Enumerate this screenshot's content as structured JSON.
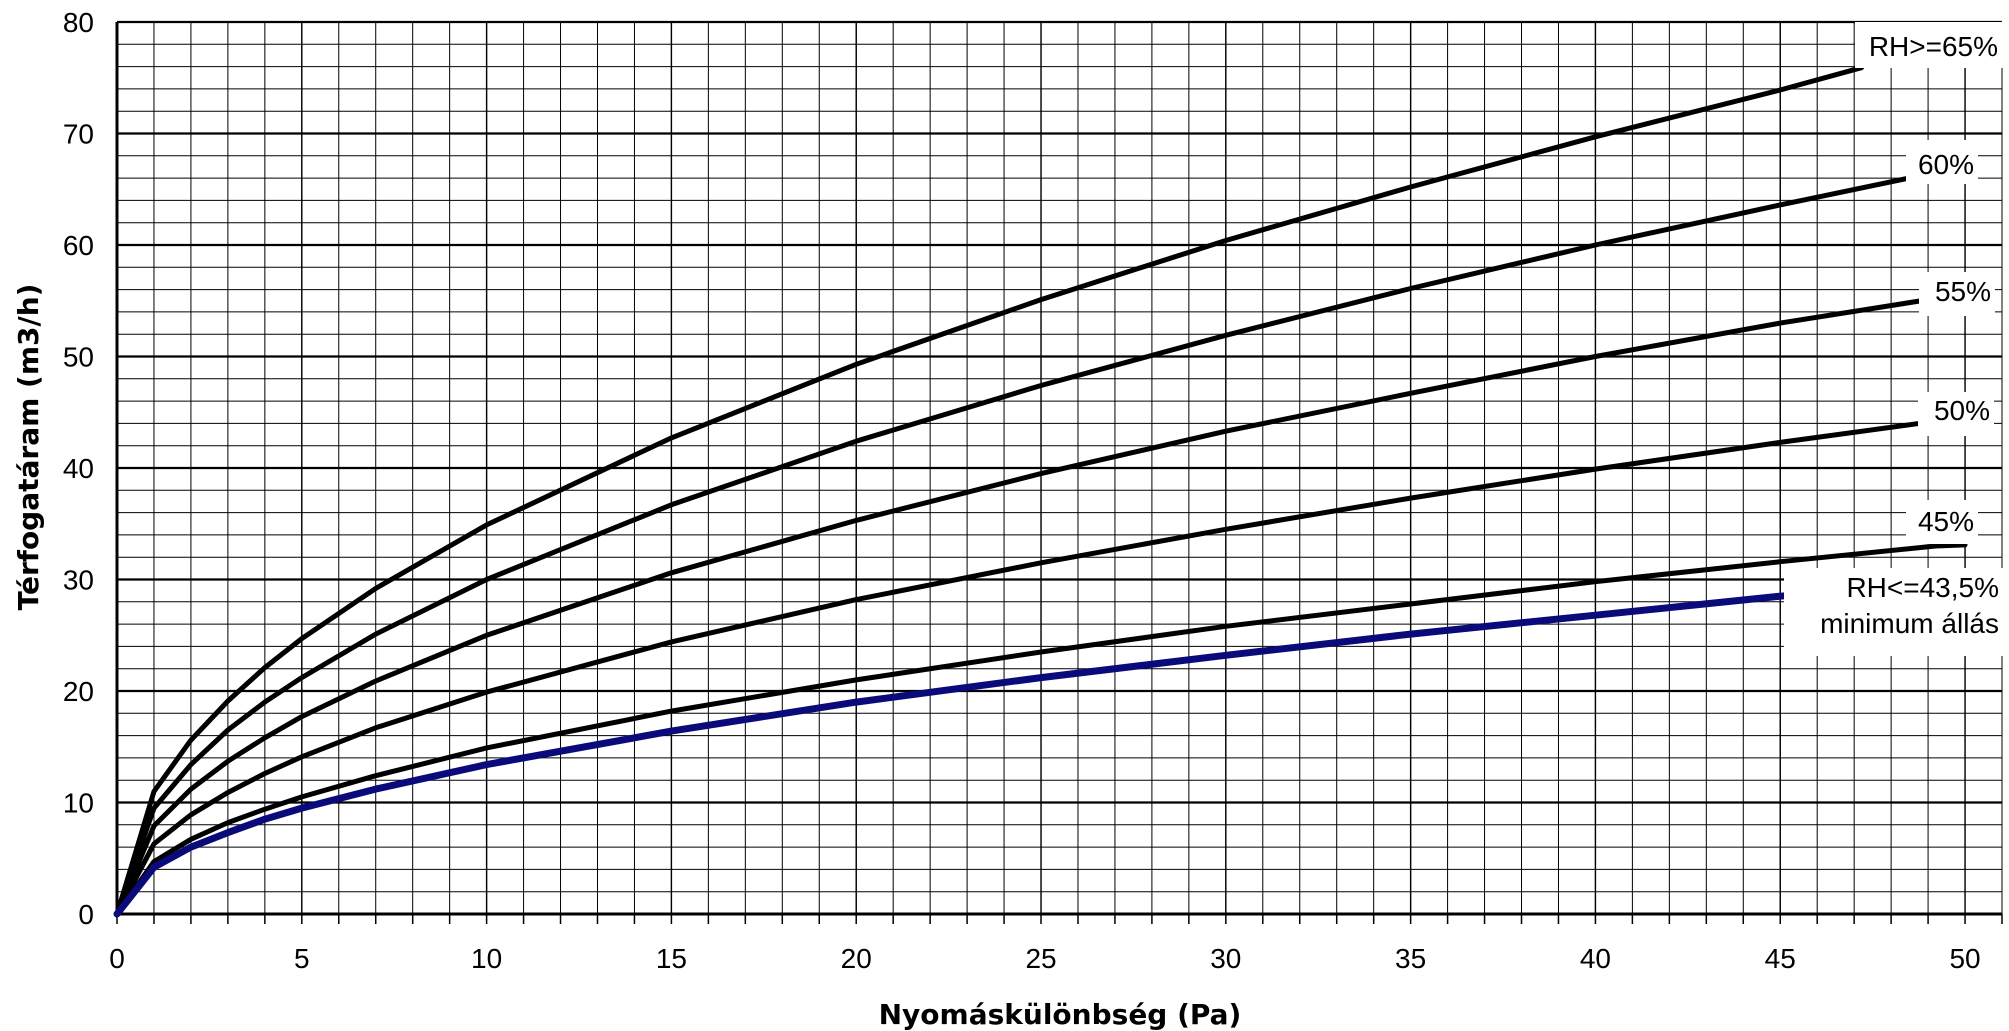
{
  "chart_data": {
    "type": "line",
    "title": "",
    "xlabel": "Nyomáskülönbség (Pa)",
    "ylabel": "Térfogatáram (m3/h)",
    "xlim": [
      0,
      51
    ],
    "ylim": [
      0,
      80
    ],
    "x_major_ticks": [
      0,
      5,
      10,
      15,
      20,
      25,
      30,
      35,
      40,
      45,
      50
    ],
    "y_major_ticks": [
      0,
      10,
      20,
      30,
      40,
      50,
      60,
      70,
      80
    ],
    "x_minor_step": 1,
    "y_minor_step": 2,
    "grid": true,
    "legend": "inline labels at line ends (right)",
    "series": [
      {
        "name": "RH>=65%",
        "color": "#000000",
        "x": [
          0,
          1,
          2,
          3,
          4,
          5,
          7,
          10,
          15,
          20,
          25,
          30,
          35,
          40,
          45,
          47.2
        ],
        "y": [
          0,
          11,
          15.6,
          19.1,
          22.1,
          24.7,
          29.2,
          34.9,
          42.7,
          49.3,
          55.1,
          60.4,
          65.2,
          69.7,
          73.9,
          75.9
        ]
      },
      {
        "name": "60%",
        "color": "#000000",
        "x": [
          0,
          1,
          2,
          3,
          4,
          5,
          7,
          10,
          15,
          20,
          25,
          30,
          35,
          40,
          45,
          48.9
        ],
        "y": [
          0,
          9.5,
          13.4,
          16.5,
          19,
          21.2,
          25.1,
          30,
          36.7,
          42.4,
          47.4,
          51.9,
          56.1,
          60,
          63.6,
          66.3
        ]
      },
      {
        "name": "55%",
        "color": "#000000",
        "x": [
          0,
          1,
          2,
          3,
          4,
          5,
          7,
          10,
          15,
          20,
          25,
          30,
          35,
          40,
          45,
          49.2
        ],
        "y": [
          0,
          7.9,
          11.2,
          13.7,
          15.8,
          17.7,
          20.9,
          25,
          30.6,
          35.3,
          39.5,
          43.3,
          46.7,
          50,
          53,
          55.2
        ]
      },
      {
        "name": "50%",
        "color": "#000000",
        "x": [
          0,
          1,
          2,
          3,
          4,
          5,
          7,
          10,
          15,
          20,
          25,
          30,
          35,
          40,
          45,
          49.2
        ],
        "y": [
          0,
          6.3,
          8.9,
          10.9,
          12.6,
          14.1,
          16.7,
          19.9,
          24.4,
          28.2,
          31.5,
          34.5,
          37.3,
          39.9,
          42.3,
          44.2
        ]
      },
      {
        "name": "45%",
        "color": "#000000",
        "x": [
          0,
          1,
          2,
          3,
          4,
          5,
          7,
          10,
          15,
          20,
          25,
          30,
          35,
          40,
          45,
          49.2,
          50
        ],
        "y": [
          0,
          4.7,
          6.7,
          8.2,
          9.4,
          10.5,
          12.4,
          14.9,
          18.2,
          21,
          23.5,
          25.8,
          27.8,
          29.8,
          31.6,
          33,
          33.1
        ]
      },
      {
        "name": "RH<=43,5%",
        "color": "#0a0a7a",
        "x": [
          0,
          1,
          2,
          3,
          4,
          5,
          7,
          10,
          15,
          20,
          25,
          30,
          35,
          40,
          45,
          46.1
        ],
        "y": [
          0,
          4.2,
          6,
          7.3,
          8.5,
          9.5,
          11.2,
          13.4,
          16.4,
          19,
          21.2,
          23.2,
          25.1,
          26.8,
          28.5,
          28.8
        ]
      }
    ],
    "annotations": [
      {
        "id": "rh65",
        "text": "RH>=65%"
      },
      {
        "id": "rh60",
        "text": "60%"
      },
      {
        "id": "rh55",
        "text": "55%"
      },
      {
        "id": "rh50",
        "text": "50%"
      },
      {
        "id": "rh45",
        "text": "45%"
      },
      {
        "id": "rh435",
        "text": "RH<=43,5%"
      },
      {
        "id": "minimum",
        "text": "minimum állás"
      }
    ]
  }
}
